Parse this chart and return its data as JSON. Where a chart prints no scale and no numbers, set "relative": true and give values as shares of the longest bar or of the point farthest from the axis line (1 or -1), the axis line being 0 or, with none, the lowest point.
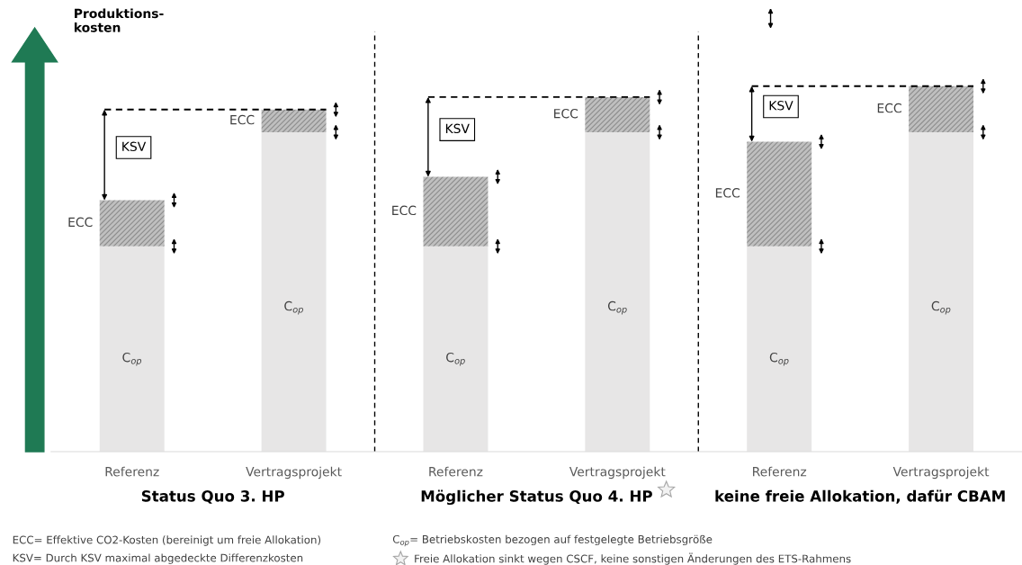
{
  "chart_data": {
    "type": "bar",
    "stacked": true,
    "relative": true,
    "ylabel": "Produktions-\nkosten",
    "categories": [
      "Referenz",
      "Vertragsprojekt",
      "Referenz",
      "Vertragsprojekt",
      "Referenz",
      "Vertragsprojekt"
    ],
    "series": [
      {
        "name": "C$_{op}$",
        "color": "#e7e6e6",
        "values": [
          0.562,
          0.874,
          0.562,
          0.874,
          0.562,
          0.874
        ]
      },
      {
        "name": "ECC",
        "color": "#8c8c8c",
        "values": [
          0.126,
          0.062,
          0.19,
          0.096,
          0.286,
          0.126
        ]
      }
    ],
    "grid": false,
    "legend": false,
    "annotations": [
      "Status Quo 3. HP",
      "Möglicher Status Quo 4. HP",
      "keine freie Allokation, dafür CBAM",
      "KSV",
      "KSV",
      "KSV",
      "ECC= Effektive CO2-Kosten (bereinigt um freie Allokation)",
      "KSV= Durch KSV maximal abgedeckte Differenzkosten",
      "C$_{op}$= Betriebskosten bezogen auf festgelegte Betriebsgröße",
      "Freie Allokation sinkt wegen CSCF, keine sonstigen Änderungen des ETS-Rahmens"
    ]
  }
}
